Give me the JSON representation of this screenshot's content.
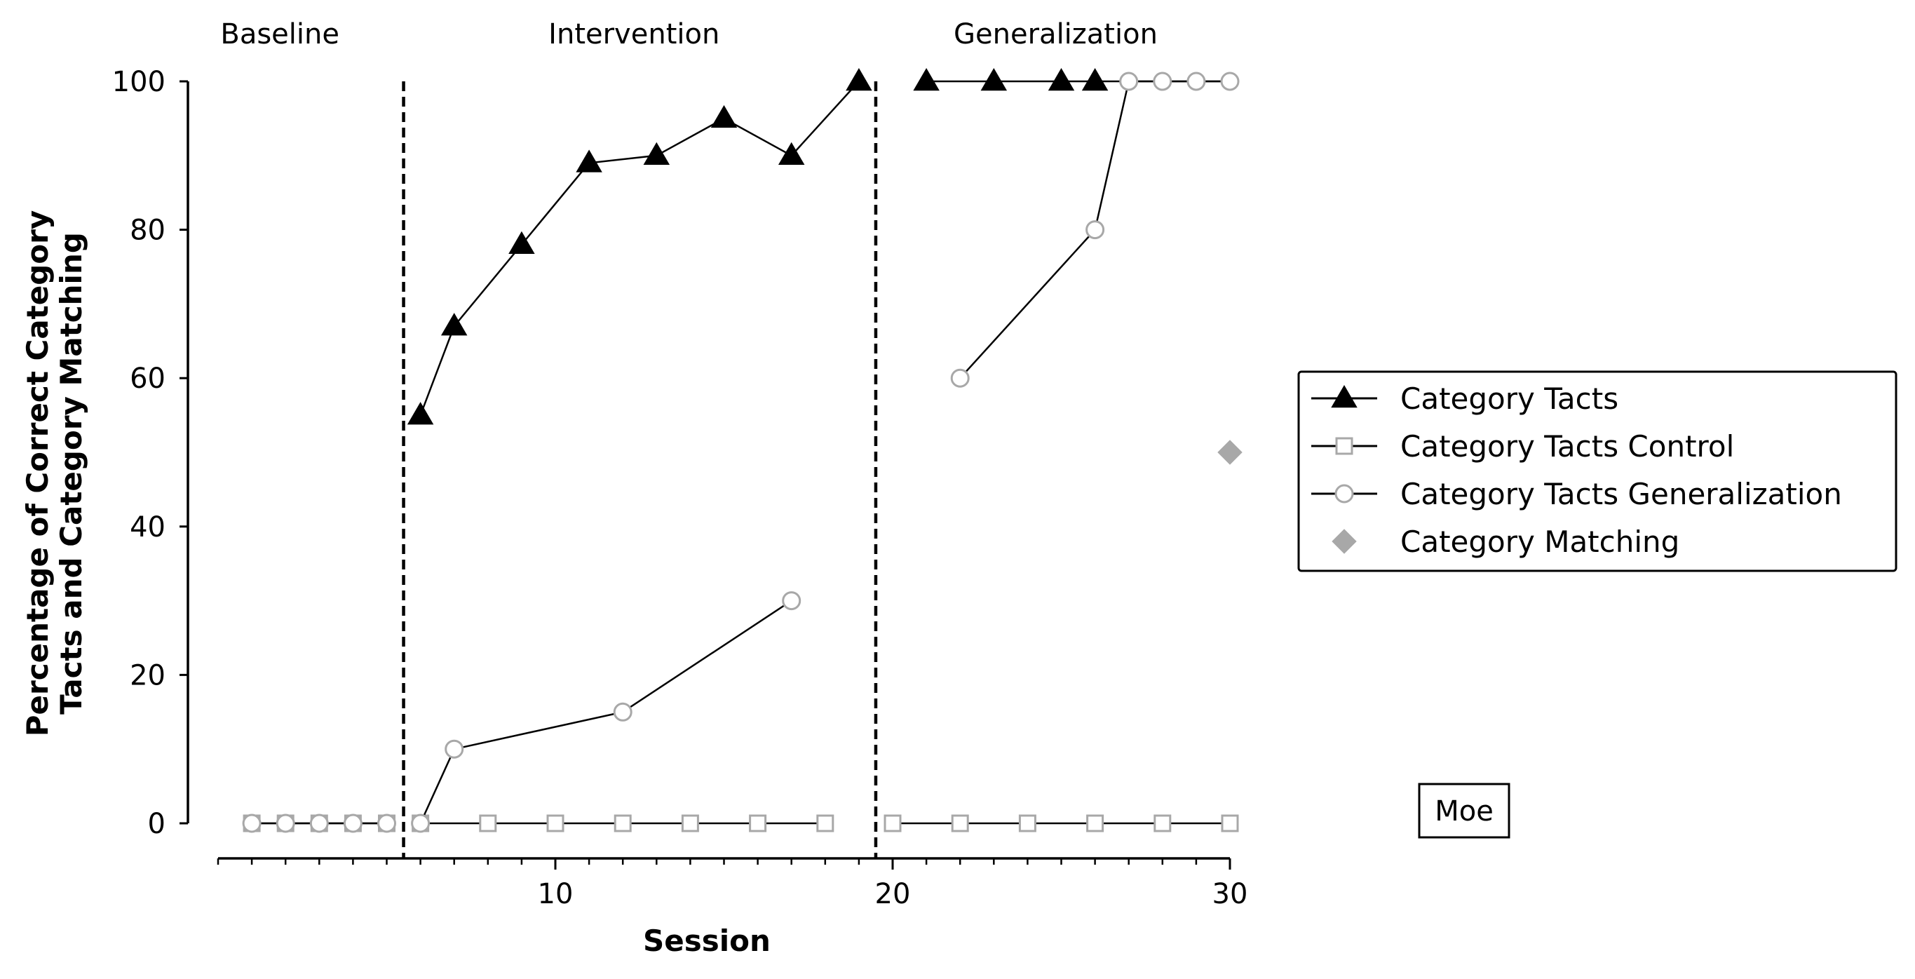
{
  "chart_data": {
    "type": "line",
    "xlabel": "Session",
    "ylabel_lines": [
      "Percentage of Correct Category",
      "Tacts and Category Matching"
    ],
    "xlim": [
      0,
      30
    ],
    "ylim": [
      -5,
      105
    ],
    "xticks_major": [
      10,
      20,
      30
    ],
    "xticks_minor": [
      0,
      1,
      2,
      3,
      4,
      5,
      6,
      7,
      8,
      9,
      11,
      12,
      13,
      14,
      15,
      16,
      17,
      18,
      19,
      21,
      22,
      23,
      24,
      25,
      26,
      27,
      28,
      29
    ],
    "yticks": [
      0,
      20,
      40,
      60,
      80,
      100
    ],
    "phase_lines": [
      5.5,
      19.5
    ],
    "phases": [
      {
        "label": "Baseline",
        "x": 2
      },
      {
        "label": "Intervention",
        "x": 12.5
      },
      {
        "label": "Generalization",
        "x": 25
      }
    ],
    "participant": "Moe",
    "grid": false,
    "legend_position": "right",
    "series": [
      {
        "key": "tacts",
        "name": "Category Tacts",
        "marker": "triangle",
        "color": "#000000",
        "segments": [
          [
            [
              6,
              55
            ],
            [
              7,
              67
            ],
            [
              9,
              78
            ],
            [
              11,
              89
            ],
            [
              13,
              90
            ],
            [
              15,
              95
            ],
            [
              17,
              90
            ],
            [
              19,
              100
            ]
          ],
          [
            [
              21,
              100
            ],
            [
              23,
              100
            ],
            [
              25,
              100
            ],
            [
              26,
              100
            ],
            [
              27,
              100
            ],
            [
              28,
              100
            ],
            [
              29,
              100
            ],
            [
              30,
              100
            ]
          ]
        ],
        "hollow_markers_x": [
          27,
          28,
          29,
          30
        ]
      },
      {
        "key": "control",
        "name": "Category Tacts Control",
        "marker": "square",
        "color": "#a8a8a8",
        "segments": [
          [
            [
              1,
              0
            ],
            [
              2,
              0
            ],
            [
              3,
              0
            ],
            [
              4,
              0
            ],
            [
              5,
              0
            ]
          ],
          [
            [
              6,
              0
            ],
            [
              8,
              0
            ],
            [
              10,
              0
            ],
            [
              12,
              0
            ],
            [
              14,
              0
            ],
            [
              16,
              0
            ],
            [
              18,
              0
            ]
          ],
          [
            [
              20,
              0
            ],
            [
              22,
              0
            ],
            [
              24,
              0
            ],
            [
              26,
              0
            ],
            [
              28,
              0
            ],
            [
              30,
              0
            ]
          ]
        ]
      },
      {
        "key": "generalization",
        "name": "Category Tacts Generalization",
        "marker": "circle",
        "color": "#a8a8a8",
        "segments": [
          [
            [
              1,
              0
            ],
            [
              2,
              0
            ],
            [
              3,
              0
            ],
            [
              4,
              0
            ],
            [
              5,
              0
            ]
          ],
          [
            [
              6,
              0
            ],
            [
              7,
              10
            ],
            [
              12,
              15
            ],
            [
              17,
              30
            ]
          ],
          [
            [
              22,
              60
            ],
            [
              26,
              80
            ],
            [
              27,
              100
            ],
            [
              28,
              100
            ],
            [
              29,
              100
            ],
            [
              30,
              100
            ]
          ]
        ]
      },
      {
        "key": "matching",
        "name": "Category Matching",
        "marker": "diamond",
        "color": "#a8a8a8",
        "segments": [
          [
            [
              30,
              50
            ]
          ]
        ]
      }
    ]
  }
}
